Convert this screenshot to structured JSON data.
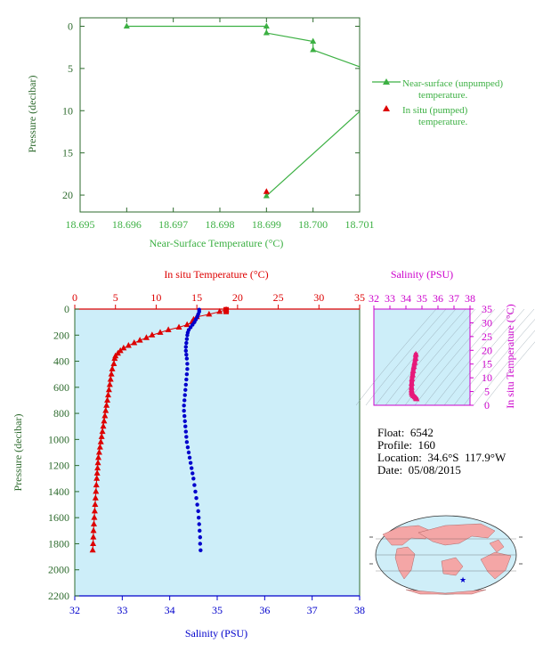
{
  "chart_data": [
    {
      "id": "near_surface",
      "type": "line",
      "xlabel": "Near-Surface Temperature (°C)",
      "ylabel": "Pressure (decibar)",
      "xlim": [
        18.695,
        18.701
      ],
      "ylim": [
        22,
        -1
      ],
      "x_ticks": [
        "18.695",
        "18.696",
        "18.697",
        "18.698",
        "18.699",
        "18.700",
        "18.701"
      ],
      "y_ticks": [
        "0",
        "5",
        "10",
        "15",
        "20"
      ],
      "legend_position": "right",
      "series": [
        {
          "name": "Near-surface (unpumped) temperature.",
          "color": "#3cb043",
          "marker": "triangle",
          "points": [
            [
              18.696,
              0.0
            ],
            [
              18.699,
              0.0
            ],
            [
              18.699,
              0.8
            ],
            [
              18.7,
              1.8
            ],
            [
              18.7,
              2.8
            ],
            [
              18.701,
              4.8
            ]
          ],
          "points2": [
            [
              18.699,
              20.1
            ],
            [
              18.701,
              10.1
            ]
          ]
        },
        {
          "name": "In situ (pumped) temperature.",
          "color": "#dd0000",
          "marker": "triangle",
          "points": [
            [
              18.699,
              19.6
            ]
          ]
        }
      ]
    },
    {
      "id": "profile",
      "type": "line",
      "top_xlabel": "In situ Temperature (°C)",
      "bottom_xlabel": "Salinity (PSU)",
      "ylabel": "Pressure (decibar)",
      "temp_lim": [
        0,
        35
      ],
      "sal_lim": [
        32,
        38
      ],
      "ylim": [
        2200,
        0
      ],
      "temp_ticks": [
        "0",
        "5",
        "10",
        "15",
        "20",
        "25",
        "30",
        "35"
      ],
      "sal_ticks": [
        "32",
        "33",
        "34",
        "35",
        "36",
        "37",
        "38"
      ],
      "p_ticks": [
        "0",
        "200",
        "400",
        "600",
        "800",
        "1000",
        "1200",
        "1400",
        "1600",
        "1800",
        "2000",
        "2200"
      ],
      "temperature": [
        [
          18.6,
          5
        ],
        [
          17.8,
          20
        ],
        [
          16.5,
          40
        ],
        [
          15.0,
          60
        ],
        [
          14.6,
          80
        ],
        [
          14.4,
          100
        ],
        [
          13.8,
          120
        ],
        [
          12.8,
          140
        ],
        [
          11.5,
          160
        ],
        [
          10.5,
          180
        ],
        [
          9.5,
          200
        ],
        [
          8.8,
          220
        ],
        [
          8.0,
          240
        ],
        [
          7.3,
          260
        ],
        [
          6.6,
          280
        ],
        [
          6.0,
          300
        ],
        [
          5.6,
          320
        ],
        [
          5.3,
          340
        ],
        [
          5.0,
          360
        ],
        [
          4.9,
          380
        ],
        [
          4.8,
          420
        ],
        [
          4.6,
          460
        ],
        [
          4.5,
          500
        ],
        [
          4.4,
          540
        ],
        [
          4.3,
          580
        ],
        [
          4.2,
          620
        ],
        [
          4.1,
          660
        ],
        [
          4.0,
          700
        ],
        [
          3.9,
          740
        ],
        [
          3.8,
          780
        ],
        [
          3.7,
          820
        ],
        [
          3.6,
          860
        ],
        [
          3.5,
          900
        ],
        [
          3.4,
          940
        ],
        [
          3.3,
          980
        ],
        [
          3.2,
          1020
        ],
        [
          3.1,
          1060
        ],
        [
          3.0,
          1100
        ],
        [
          2.9,
          1140
        ],
        [
          2.85,
          1180
        ],
        [
          2.8,
          1220
        ],
        [
          2.75,
          1260
        ],
        [
          2.7,
          1300
        ],
        [
          2.65,
          1350
        ],
        [
          2.6,
          1400
        ],
        [
          2.55,
          1450
        ],
        [
          2.5,
          1500
        ],
        [
          2.45,
          1550
        ],
        [
          2.4,
          1600
        ],
        [
          2.35,
          1650
        ],
        [
          2.3,
          1700
        ],
        [
          2.28,
          1750
        ],
        [
          2.25,
          1800
        ],
        [
          2.2,
          1850
        ]
      ],
      "salinity": [
        [
          34.62,
          5
        ],
        [
          34.62,
          20
        ],
        [
          34.6,
          40
        ],
        [
          34.58,
          60
        ],
        [
          34.55,
          80
        ],
        [
          34.52,
          100
        ],
        [
          34.48,
          120
        ],
        [
          34.44,
          140
        ],
        [
          34.4,
          160
        ],
        [
          34.38,
          180
        ],
        [
          34.37,
          200
        ],
        [
          34.36,
          230
        ],
        [
          34.35,
          260
        ],
        [
          34.34,
          290
        ],
        [
          34.34,
          320
        ],
        [
          34.35,
          350
        ],
        [
          34.36,
          380
        ],
        [
          34.37,
          420
        ],
        [
          34.37,
          460
        ],
        [
          34.36,
          500
        ],
        [
          34.35,
          540
        ],
        [
          34.34,
          580
        ],
        [
          34.33,
          620
        ],
        [
          34.32,
          660
        ],
        [
          34.31,
          700
        ],
        [
          34.3,
          740
        ],
        [
          34.3,
          780
        ],
        [
          34.31,
          820
        ],
        [
          34.32,
          860
        ],
        [
          34.33,
          900
        ],
        [
          34.34,
          940
        ],
        [
          34.35,
          980
        ],
        [
          34.36,
          1020
        ],
        [
          34.38,
          1060
        ],
        [
          34.4,
          1100
        ],
        [
          34.42,
          1140
        ],
        [
          34.44,
          1180
        ],
        [
          34.46,
          1220
        ],
        [
          34.48,
          1260
        ],
        [
          34.5,
          1300
        ],
        [
          34.52,
          1350
        ],
        [
          34.54,
          1400
        ],
        [
          34.56,
          1450
        ],
        [
          34.58,
          1500
        ],
        [
          34.6,
          1550
        ],
        [
          34.61,
          1600
        ],
        [
          34.62,
          1650
        ],
        [
          34.63,
          1700
        ],
        [
          34.64,
          1750
        ],
        [
          34.64,
          1800
        ],
        [
          34.65,
          1850
        ]
      ],
      "temp_color": "#dd0000",
      "sal_color": "#0000cc"
    },
    {
      "id": "ts_diagram",
      "type": "scatter",
      "top_xlabel": "Salinity (PSU)",
      "right_ylabel": "In situ Temperature (°C)",
      "xlim": [
        32,
        38
      ],
      "ylim": [
        0,
        35
      ],
      "x_ticks": [
        "32",
        "33",
        "34",
        "35",
        "36",
        "37",
        "38"
      ],
      "y_ticks": [
        "0",
        "5",
        "10",
        "15",
        "20",
        "25",
        "30",
        "35"
      ],
      "color": "#e6197a",
      "points": [
        [
          34.62,
          18.5
        ],
        [
          34.6,
          17.0
        ],
        [
          34.55,
          15.5
        ],
        [
          34.5,
          14.0
        ],
        [
          34.45,
          12.5
        ],
        [
          34.42,
          11.0
        ],
        [
          34.38,
          9.5
        ],
        [
          34.36,
          8.0
        ],
        [
          34.35,
          6.5
        ],
        [
          34.35,
          5.5
        ],
        [
          34.36,
          4.8
        ],
        [
          34.38,
          4.2
        ],
        [
          34.42,
          3.8
        ],
        [
          34.48,
          3.4
        ],
        [
          34.55,
          3.0
        ],
        [
          34.62,
          2.6
        ],
        [
          34.66,
          2.3
        ]
      ]
    }
  ],
  "float_info": {
    "float_label": "Float:",
    "float_value": "6542",
    "profile_label": "Profile:",
    "profile_value": "160",
    "location_label": "Location:",
    "location_value": "34.6°S  117.9°W",
    "date_label": "Date:",
    "date_value": "05/08/2015"
  },
  "colors": {
    "green": "#3cb043",
    "axis_green": "#2e6b2e",
    "red": "#dd0000",
    "blue": "#0000cc",
    "magenta": "#cc00cc",
    "plot_bg": "#cdeef9",
    "land": "#f4a6a6",
    "ocean": "#cfeef8"
  },
  "map": {
    "marker_icon": "star-icon"
  }
}
